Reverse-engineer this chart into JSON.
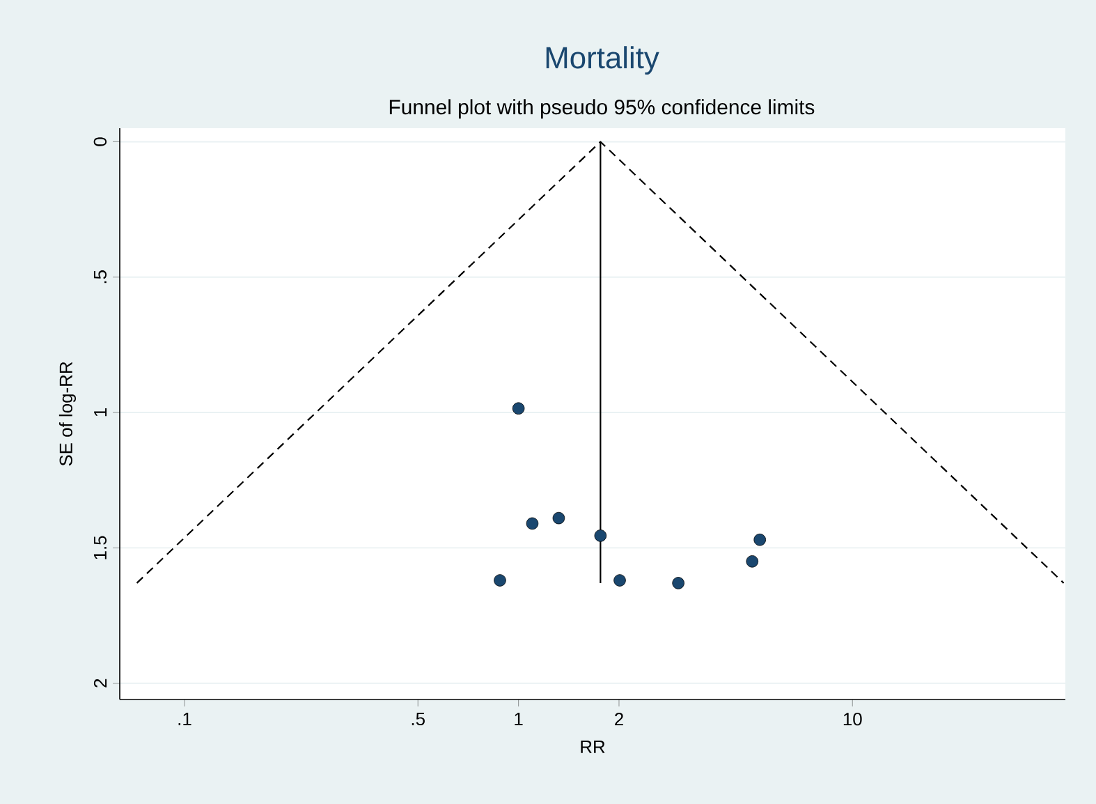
{
  "chart_data": {
    "type": "scatter",
    "title": "Mortality",
    "subtitle": "Funnel plot with pseudo 95% confidence limits",
    "xlabel": "RR",
    "ylabel": "SE of log-RR",
    "log": "x",
    "grid": "y",
    "xlim": [
      0.064,
      43.4
    ],
    "ylim": [
      2.06,
      -0.05
    ],
    "xticks": [
      {
        "value": 0.1,
        "label": ".1"
      },
      {
        "value": 0.5,
        "label": ".5"
      },
      1,
      2,
      10
    ],
    "yticks": [
      0,
      {
        "value": 0.5,
        "label": ".5"
      },
      1,
      1.5,
      2
    ],
    "series": [
      {
        "type": "line",
        "line_style": "dashed",
        "marker": "none",
        "color": "#000000",
        "x": [
          0.072,
          1.76,
          42.9
        ],
        "values": [
          1.63,
          0,
          1.63
        ]
      },
      {
        "type": "line",
        "line_style": "solid",
        "marker": "none",
        "color": "#000000",
        "x": [
          1.76,
          1.76
        ],
        "values": [
          0,
          1.63
        ]
      },
      {
        "marker": "circle",
        "color": "#1a476f",
        "x": [
          1.0,
          0.88,
          1.1,
          1.32,
          1.76,
          2.01,
          3.01,
          5.01,
          5.28
        ],
        "values": [
          0.985,
          1.62,
          1.41,
          1.39,
          1.455,
          1.62,
          1.63,
          1.55,
          1.47
        ]
      }
    ]
  }
}
